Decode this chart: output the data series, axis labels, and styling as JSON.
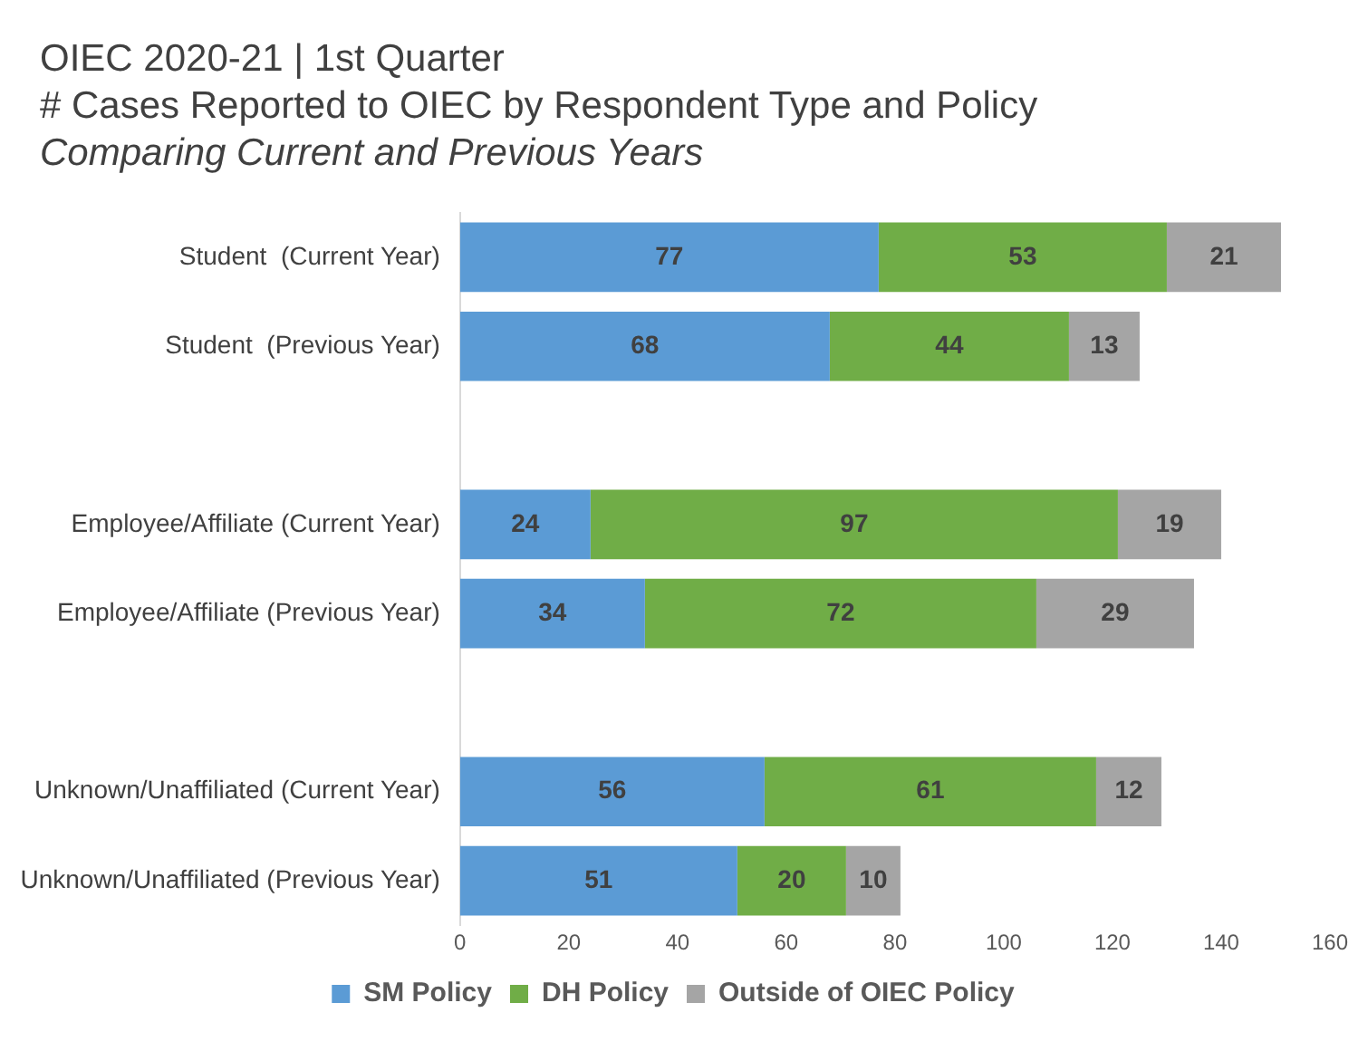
{
  "chart_data": {
    "type": "bar",
    "orientation": "horizontal",
    "stacked": true,
    "title": "OIEC 2020-21 | 1st Quarter\n# Cases Reported to OIEC by Respondent Type and Policy",
    "subtitle": "Comparing Current and Previous Years",
    "categories": [
      "Student  (Current Year)",
      "Student  (Previous Year)",
      null,
      "Employee/Affiliate (Current Year)",
      "Employee/Affiliate (Previous Year)",
      null,
      "Unknown/Unaffiliated (Current Year)",
      "Unknown/Unaffiliated (Previous Year)"
    ],
    "series": [
      {
        "name": "SM Policy",
        "color": "#5b9bd5",
        "values": [
          77,
          68,
          null,
          24,
          34,
          null,
          56,
          51
        ]
      },
      {
        "name": "DH Policy",
        "color": "#70ad47",
        "values": [
          53,
          44,
          null,
          97,
          72,
          null,
          61,
          20
        ]
      },
      {
        "name": "Outside of OIEC Policy",
        "color": "#a5a5a5",
        "values": [
          21,
          13,
          null,
          19,
          29,
          null,
          12,
          10
        ]
      }
    ],
    "xlim": [
      0,
      160
    ],
    "xticks": [
      0,
      20,
      40,
      60,
      80,
      100,
      120,
      140,
      160
    ],
    "grid": false,
    "legend": "bottom",
    "data_labels": true
  }
}
